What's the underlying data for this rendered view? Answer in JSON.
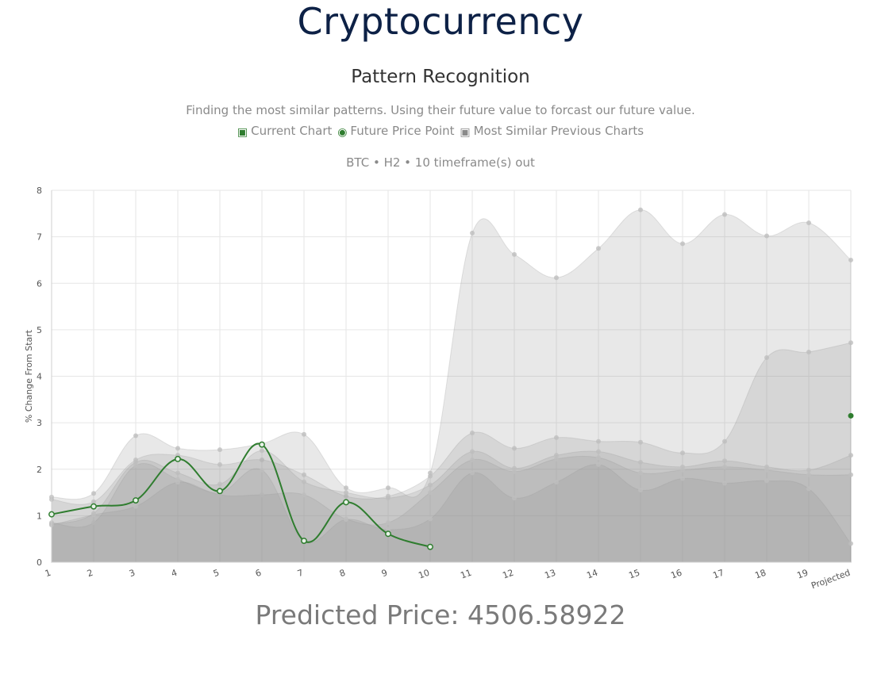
{
  "header": {
    "title": "Cryptocurrency",
    "section_title": "Pattern Recognition",
    "description": "Finding the most similar patterns. Using their future value to forcast our future value.",
    "subtitle": "BTC • H2 • 10 timeframe(s) out"
  },
  "legend": {
    "items": [
      {
        "label": "Current Chart",
        "icon": "filled-square-icon",
        "color": "#2f7d2f"
      },
      {
        "label": "Future Price Point",
        "icon": "filled-circle-icon",
        "color": "#2f7d2f"
      },
      {
        "label": "Most Similar Previous Charts",
        "icon": "filled-square-icon",
        "color": "#8a8a8a"
      }
    ]
  },
  "chart_data": {
    "type": "area",
    "ylabel": "% Change From Start",
    "ylim": [
      0,
      8
    ],
    "yticks": [
      0,
      1,
      2,
      3,
      4,
      5,
      6,
      7,
      8
    ],
    "categories": [
      "1",
      "2",
      "3",
      "4",
      "5",
      "6",
      "7",
      "8",
      "9",
      "10",
      "11",
      "12",
      "13",
      "14",
      "15",
      "16",
      "17",
      "18",
      "19",
      "Projected"
    ],
    "grid": true,
    "current_chart": {
      "color": "#2f7d2f",
      "values": [
        1.03,
        1.2,
        1.33,
        2.22,
        1.53,
        2.53,
        0.46,
        1.29,
        0.61,
        0.33
      ]
    },
    "future_price_point": {
      "category": "Projected",
      "value": 3.15,
      "color": "#2f7d2f"
    },
    "similar_series": [
      {
        "values": [
          1.4,
          1.48,
          2.72,
          2.45,
          2.42,
          2.55,
          2.75,
          1.6,
          1.6,
          1.92,
          7.08,
          6.62,
          6.12,
          6.75,
          7.58,
          6.85,
          7.48,
          7.02,
          7.3,
          6.5
        ]
      },
      {
        "values": [
          1.35,
          1.3,
          2.2,
          2.3,
          2.1,
          2.2,
          1.88,
          1.42,
          1.42,
          1.85,
          2.78,
          2.45,
          2.68,
          2.6,
          2.58,
          2.35,
          2.6,
          4.4,
          4.52,
          4.72
        ]
      },
      {
        "values": [
          0.82,
          1.05,
          2.15,
          1.92,
          1.68,
          2.4,
          1.73,
          1.5,
          1.38,
          1.66,
          2.38,
          2.02,
          2.3,
          2.38,
          2.15,
          2.05,
          2.18,
          2.05,
          1.98,
          2.3
        ]
      },
      {
        "values": [
          0.85,
          0.85,
          2.08,
          1.78,
          1.45,
          1.45,
          1.45,
          0.93,
          0.85,
          1.5,
          2.2,
          1.95,
          2.22,
          2.25,
          1.92,
          1.98,
          2.05,
          1.98,
          1.88,
          1.88
        ]
      },
      {
        "values": [
          0.8,
          1.02,
          1.2,
          1.72,
          1.5,
          1.98,
          0.46,
          0.92,
          0.7,
          0.93,
          1.92,
          1.38,
          1.72,
          2.1,
          1.55,
          1.8,
          1.7,
          1.75,
          1.58,
          0.4
        ]
      }
    ]
  },
  "predicted": {
    "text": "Predicted Price: 4506.58922"
  }
}
